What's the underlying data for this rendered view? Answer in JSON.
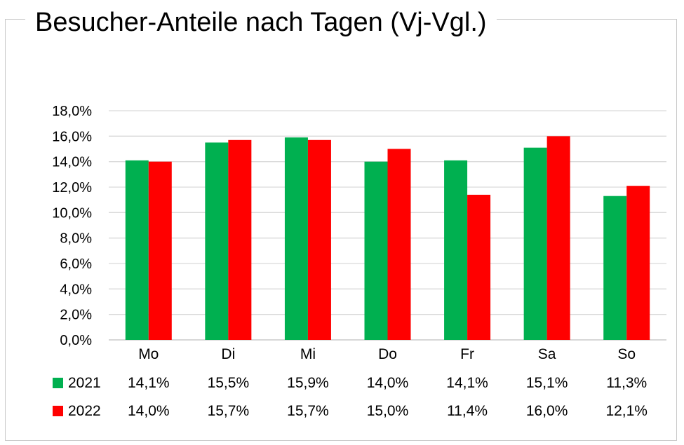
{
  "chart_data": {
    "type": "bar",
    "title": "Besucher-Anteile nach Tagen (Vj-Vgl.)",
    "categories": [
      "Mo",
      "Di",
      "Mi",
      "Do",
      "Fr",
      "Sa",
      "So"
    ],
    "series": [
      {
        "name": "2021",
        "color": "#00b050",
        "values": [
          14.1,
          15.5,
          15.9,
          14.0,
          14.1,
          15.1,
          11.3
        ],
        "labels": [
          "14,1%",
          "15,5%",
          "15,9%",
          "14,0%",
          "14,1%",
          "15,1%",
          "11,3%"
        ]
      },
      {
        "name": "2022",
        "color": "#ff0000",
        "values": [
          14.0,
          15.7,
          15.7,
          15.0,
          11.4,
          16.0,
          12.1
        ],
        "labels": [
          "14,0%",
          "15,7%",
          "15,7%",
          "15,0%",
          "11,4%",
          "16,0%",
          "12,1%"
        ]
      }
    ],
    "ylim": [
      0,
      18
    ],
    "yticks": [
      "0,0%",
      "2,0%",
      "4,0%",
      "6,0%",
      "8,0%",
      "10,0%",
      "12,0%",
      "14,0%",
      "16,0%",
      "18,0%"
    ],
    "grid": true,
    "legend": "data-table-bottom"
  }
}
